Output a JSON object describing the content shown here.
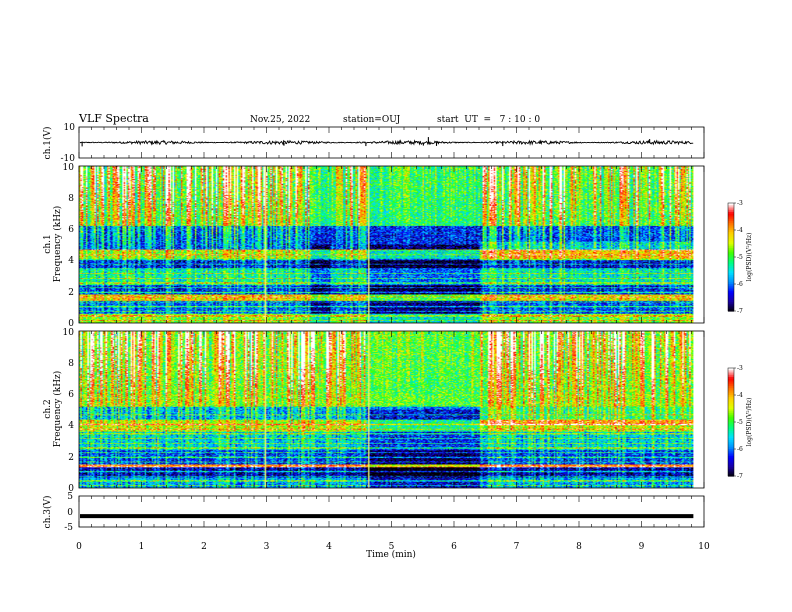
{
  "header": {
    "title": "VLF Spectra",
    "date": "Nov.25, 2022",
    "station": "station=OUJ",
    "start_ut": "start  UT  =   7 : 10 : 0"
  },
  "colors": {
    "trace": "#000000",
    "background": "#ffffff",
    "colormap": [
      "#000000",
      "#1a00a0",
      "#0000ff",
      "#0090ff",
      "#00e0ff",
      "#00ff80",
      "#40ff00",
      "#e0ff00",
      "#ffd000",
      "#ff7000",
      "#ff0000",
      "#ffffff"
    ]
  },
  "chart_data": [
    {
      "type": "line",
      "name": "ch1-waveform",
      "ylabel": "ch.1(V)",
      "ylim": [
        -10,
        10
      ],
      "yticks": [
        "10",
        "-10"
      ],
      "xlim": [
        0,
        10
      ],
      "data_end_min": 9.83,
      "mean_level": 0,
      "noise_amplitude": 1.2,
      "spikes": [
        {
          "t": 0.05,
          "v": -2.5
        },
        {
          "t": 3.28,
          "v": -2.0
        },
        {
          "t": 4.59,
          "v": -2.3
        },
        {
          "t": 5.51,
          "v": -2.0
        },
        {
          "t": 5.59,
          "v": 3.5
        },
        {
          "t": 5.72,
          "v": -2.2
        },
        {
          "t": 6.78,
          "v": -2.3
        },
        {
          "t": 9.13,
          "v": 2.2
        }
      ]
    },
    {
      "type": "heatmap",
      "name": "ch1-spectrogram",
      "ylabel": "ch.1\nFrequency (kHz)",
      "ylim": [
        0,
        10
      ],
      "yticks": [
        "0",
        "2",
        "4",
        "6",
        "8",
        "10"
      ],
      "xlim": [
        0,
        10
      ],
      "data_end_min": 9.83,
      "colorbar": {
        "label": "log(PSD)(V²/Hz)",
        "range": [
          -7,
          -3
        ],
        "ticks": [
          "-3",
          "-4",
          "-5",
          "-6",
          "-7"
        ]
      },
      "hum_lines_khz": [
        0.15,
        0.45,
        0.75,
        1.05,
        1.35,
        1.65,
        1.95,
        2.25,
        2.55,
        2.85,
        3.15,
        3.45,
        3.75,
        4.05,
        4.35,
        4.65
      ],
      "vertical_lines_min": [
        2.97,
        4.62
      ],
      "dark_gaps_min": [
        [
          3.7,
          4.0
        ],
        [
          4.6,
          6.4
        ]
      ],
      "activity_shift_min": 6.4,
      "band_levels": [
        {
          "f": [
            0,
            0.6
          ],
          "level": -5.0
        },
        {
          "f": [
            0.6,
            1.4
          ],
          "level": -6.3
        },
        {
          "f": [
            1.4,
            1.8
          ],
          "level": -4.5
        },
        {
          "f": [
            1.8,
            2.4
          ],
          "level": -6.5
        },
        {
          "f": [
            2.4,
            3.4
          ],
          "level": -5.6
        },
        {
          "f": [
            3.4,
            4.1
          ],
          "level": -6.6
        },
        {
          "f": [
            4.1,
            4.7
          ],
          "level": -5.0
        },
        {
          "f": [
            4.7,
            6.2
          ],
          "level": -6.4
        },
        {
          "f": [
            6.2,
            10
          ],
          "level": -5.3
        }
      ]
    },
    {
      "type": "heatmap",
      "name": "ch2-spectrogram",
      "ylabel": "ch.2\nFrequency (kHz)",
      "ylim": [
        0,
        10
      ],
      "yticks": [
        "0",
        "2",
        "4",
        "6",
        "8",
        "10"
      ],
      "xlim": [
        0,
        10
      ],
      "data_end_min": 9.83,
      "colorbar": {
        "label": "log(PSD)(V²/Hz)",
        "range": [
          -7,
          -3
        ],
        "ticks": [
          "-3",
          "-4",
          "-5",
          "-6",
          "-7"
        ]
      },
      "hum_lines_khz": [
        0.15,
        0.45,
        0.75,
        1.05,
        1.35,
        1.65,
        1.95,
        2.25,
        2.55,
        2.85,
        3.15,
        3.45,
        3.75,
        4.05,
        4.35,
        4.65
      ],
      "vertical_lines_min": [
        2.97,
        4.62
      ],
      "dark_gaps_min": [
        [
          4.6,
          6.4
        ]
      ],
      "activity_shift_min": 6.4,
      "band_levels": [
        {
          "f": [
            0,
            0.7
          ],
          "level": -6.0
        },
        {
          "f": [
            0.7,
            1.3
          ],
          "level": -6.8
        },
        {
          "f": [
            1.3,
            1.5
          ],
          "level": -4.0
        },
        {
          "f": [
            1.5,
            2.4
          ],
          "level": -6.4
        },
        {
          "f": [
            2.4,
            3.6
          ],
          "level": -5.8
        },
        {
          "f": [
            3.6,
            4.3
          ],
          "level": -4.8
        },
        {
          "f": [
            4.3,
            5.2
          ],
          "level": -6.0
        },
        {
          "f": [
            5.2,
            6.0
          ],
          "level": -5.0
        },
        {
          "f": [
            6.0,
            10
          ],
          "level": -5.1
        }
      ]
    },
    {
      "type": "line",
      "name": "ch3-waveform",
      "ylabel": "ch.3(V)",
      "ylim": [
        -5,
        5
      ],
      "yticks": [
        "5",
        "0",
        "-5"
      ],
      "xlim": [
        0,
        10
      ],
      "data_end_min": 9.83,
      "mean_level": -1.5,
      "noise_amplitude": 0.15,
      "spikes": []
    }
  ],
  "x_axis": {
    "label": "Time (min)",
    "ticks": [
      "0",
      "1",
      "2",
      "3",
      "4",
      "5",
      "6",
      "7",
      "8",
      "9",
      "10"
    ]
  }
}
